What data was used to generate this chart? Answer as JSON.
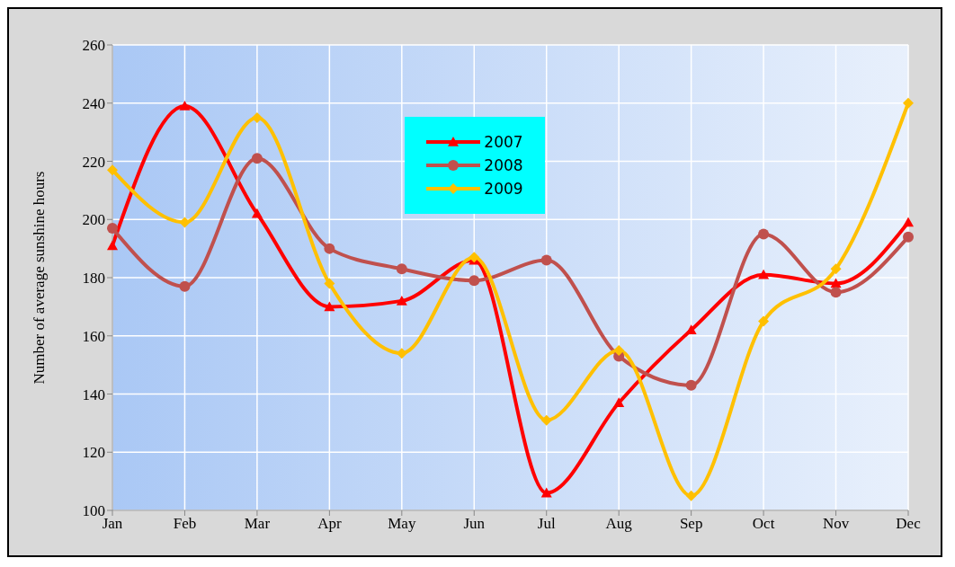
{
  "chart_data": {
    "type": "line",
    "ylabel": "Number of average sunshine hours",
    "categories": [
      "Jan",
      "Feb",
      "Mar",
      "Apr",
      "May",
      "Jun",
      "Jul",
      "Aug",
      "Sep",
      "Oct",
      "Nov",
      "Dec"
    ],
    "series": [
      {
        "name": "2007",
        "color": "#ff0000",
        "marker": "triangle",
        "values": [
          191,
          239,
          202,
          170,
          172,
          186,
          106,
          137,
          162,
          181,
          178,
          199
        ]
      },
      {
        "name": "2008",
        "color": "#c0504d",
        "marker": "circle",
        "values": [
          197,
          177,
          221,
          190,
          183,
          179,
          186,
          153,
          143,
          195,
          175,
          194
        ]
      },
      {
        "name": "2009",
        "color": "#ffc000",
        "marker": "diamond",
        "values": [
          217,
          199,
          235,
          178,
          154,
          187,
          131,
          155,
          105,
          165,
          183,
          240
        ]
      }
    ],
    "ylim": [
      100,
      260
    ],
    "yticks": [
      100,
      120,
      140,
      160,
      180,
      200,
      220,
      240,
      260
    ],
    "grid": true,
    "legend": "top",
    "line_style": "solid"
  }
}
